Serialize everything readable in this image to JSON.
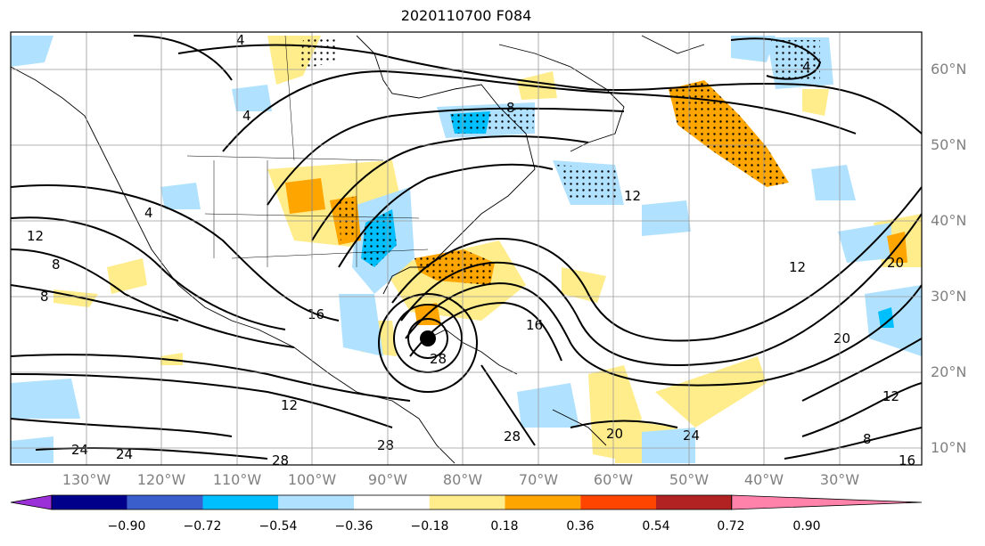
{
  "title": "2020110700 F084",
  "lat_labels": [
    "60°N",
    "50°N",
    "40°N",
    "30°N",
    "20°N",
    "10°N"
  ],
  "lon_labels": [
    "130°W",
    "120°W",
    "110°W",
    "100°W",
    "90°W",
    "80°W",
    "70°W",
    "60°W",
    "50°W",
    "40°W",
    "30°W"
  ],
  "map": {
    "lon_range": [
      -140,
      -19
    ],
    "lat_range": [
      8,
      65
    ],
    "gridlines": true,
    "contour_labels": [
      "4",
      "4",
      "4",
      "4",
      "8",
      "8",
      "8",
      "8",
      "12",
      "12",
      "12",
      "12",
      "12",
      "16",
      "16",
      "16",
      "20",
      "20",
      "20",
      "24",
      "24",
      "24",
      "28",
      "28",
      "28",
      "28"
    ],
    "storm_marker": {
      "lon": -85,
      "lat": 24.5
    }
  },
  "colorbar": {
    "labels": [
      "−0.90",
      "−0.72",
      "−0.54",
      "−0.36",
      "−0.18",
      "0.18",
      "0.36",
      "0.54",
      "0.72",
      "0.90"
    ],
    "colors": [
      "#9b30d9",
      "#00008b",
      "#3a5fcd",
      "#00bfff",
      "#b0e2ff",
      "#ffffff",
      "#ffec8b",
      "#ffa500",
      "#ff4500",
      "#b22222",
      "#ff82ab"
    ],
    "extend": "both"
  }
}
